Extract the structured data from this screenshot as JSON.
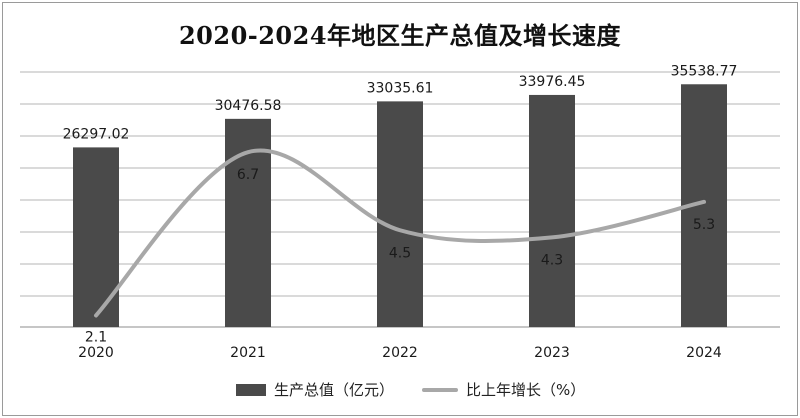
{
  "chart_data": {
    "type": "bar",
    "title": "2020-2024年地区生产总值及增长速度",
    "categories": [
      "2020",
      "2021",
      "2022",
      "2023",
      "2024"
    ],
    "series": [
      {
        "name": "生产总值（亿元）",
        "type": "bar",
        "values": [
          26297.02,
          30476.58,
          33035.61,
          33976.45,
          35538.77
        ],
        "labels": [
          "26297.02",
          "30476.58",
          "33035.61",
          "33976.45",
          "35538.77"
        ],
        "color": "#4a4a4a"
      },
      {
        "name": "比上年增长（%）",
        "type": "line",
        "smooth": true,
        "values": [
          2.1,
          6.7,
          4.5,
          4.3,
          5.3
        ],
        "labels": [
          "2.1",
          "6.7",
          "4.5",
          "4.3",
          "5.3"
        ],
        "color": "#a8a8a8"
      }
    ],
    "grid": true,
    "legend": "bottom"
  }
}
